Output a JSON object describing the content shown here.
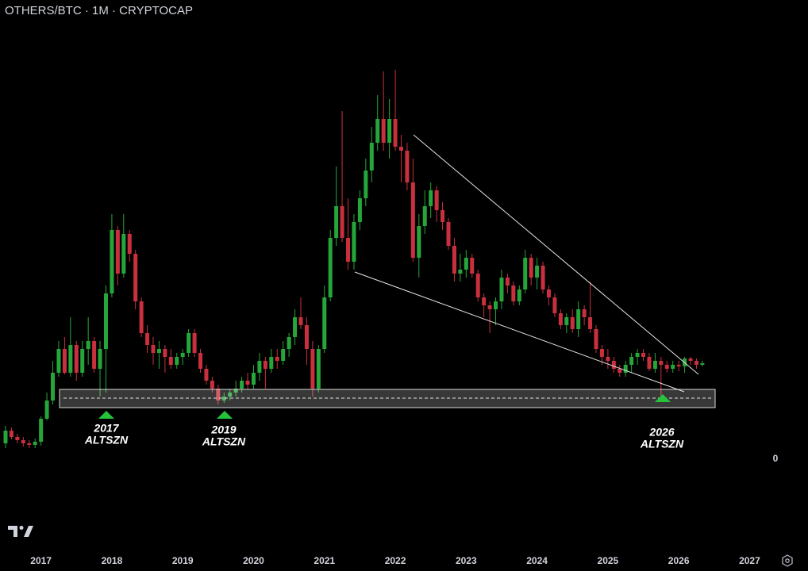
{
  "chart_data": {
    "type": "candlestick",
    "title": "OTHERS/BTC · 1M · CRYPTOCAP",
    "categories": [
      null,
      null,
      null,
      null,
      null,
      null,
      "2017",
      null,
      null,
      null,
      null,
      null,
      null,
      null,
      null,
      null,
      null,
      null,
      "2018",
      null,
      null,
      null,
      null,
      null,
      null,
      null,
      null,
      null,
      null,
      null,
      "2019",
      null,
      null,
      null,
      null,
      null,
      null,
      null,
      null,
      null,
      null,
      null,
      "2020",
      null,
      null,
      null,
      null,
      null,
      null,
      null,
      null,
      null,
      null,
      null,
      "2021",
      null,
      null,
      null,
      null,
      null,
      null,
      null,
      null,
      null,
      null,
      null,
      "2022",
      null,
      null,
      null,
      null,
      null,
      null,
      null,
      null,
      null,
      null,
      null,
      "2023",
      null,
      null,
      null,
      null,
      null,
      null,
      null,
      null,
      null,
      null,
      null,
      "2024",
      null,
      null,
      null,
      null,
      null,
      null,
      null,
      null,
      null,
      null,
      null,
      "2025",
      null,
      null,
      null,
      null,
      null,
      null,
      null,
      null,
      null,
      null,
      null,
      "2026",
      null,
      null,
      null,
      null,
      null,
      null,
      null,
      null,
      null,
      null,
      null,
      "2027"
    ],
    "open": [
      20,
      36,
      28,
      24,
      20,
      18,
      22,
      51,
      74,
      109,
      139,
      109,
      144,
      109,
      139,
      149,
      114,
      139,
      209,
      289,
      234,
      284,
      259,
      199,
      159,
      144,
      134,
      139,
      129,
      119,
      129,
      134,
      159,
      134,
      114,
      99,
      89,
      74,
      79,
      84,
      89,
      99,
      94,
      109,
      124,
      114,
      129,
      124,
      139,
      154,
      179,
      169,
      139,
      89,
      139,
      204,
      279,
      319,
      279,
      249,
      299,
      329,
      364,
      399,
      429,
      399,
      429,
      394,
      389,
      349,
      254,
      294,
      319,
      339,
      314,
      299,
      269,
      234,
      239,
      254,
      234,
      204,
      194,
      189,
      199,
      229,
      219,
      199,
      214,
      254,
      229,
      244,
      214,
      204,
      184,
      169,
      179,
      164,
      189,
      179,
      164,
      139,
      129,
      124,
      114,
      109,
      119,
      129,
      134,
      129,
      114,
      124,
      119,
      114,
      119,
      117,
      127,
      124,
      119,
      null,
      null,
      null,
      null,
      null,
      null,
      null,
      null
    ],
    "high": [
      42,
      40,
      32,
      28,
      24,
      26,
      54,
      84,
      124,
      149,
      154,
      179,
      149,
      149,
      179,
      154,
      149,
      219,
      309,
      294,
      309,
      289,
      264,
      204,
      169,
      154,
      149,
      144,
      139,
      134,
      139,
      164,
      164,
      139,
      119,
      104,
      94,
      84,
      89,
      99,
      104,
      109,
      119,
      134,
      129,
      139,
      139,
      149,
      159,
      189,
      204,
      179,
      149,
      144,
      219,
      289,
      369,
      439,
      329,
      309,
      339,
      379,
      419,
      459,
      489,
      454,
      491,
      409,
      399,
      379,
      309,
      339,
      349,
      344,
      324,
      304,
      279,
      259,
      264,
      259,
      239,
      209,
      199,
      204,
      239,
      234,
      224,
      219,
      264,
      259,
      254,
      249,
      219,
      209,
      189,
      184,
      189,
      199,
      194,
      224,
      169,
      144,
      139,
      129,
      119,
      124,
      134,
      139,
      139,
      134,
      134,
      129,
      124,
      124,
      124,
      129,
      129,
      127,
      124,
      null,
      null,
      null,
      null,
      null,
      null,
      null,
      null
    ],
    "low": [
      14,
      25,
      20,
      16,
      14,
      14,
      17,
      49,
      69,
      104,
      107,
      104,
      99,
      104,
      119,
      109,
      79,
      84,
      204,
      219,
      229,
      249,
      189,
      154,
      134,
      119,
      114,
      109,
      114,
      114,
      119,
      129,
      129,
      109,
      94,
      84,
      69,
      71,
      74,
      79,
      84,
      89,
      89,
      99,
      89,
      109,
      114,
      119,
      129,
      144,
      164,
      119,
      79,
      84,
      134,
      199,
      269,
      274,
      239,
      239,
      289,
      319,
      349,
      389,
      389,
      379,
      389,
      349,
      339,
      249,
      229,
      284,
      304,
      299,
      289,
      264,
      224,
      224,
      229,
      229,
      199,
      179,
      159,
      169,
      189,
      209,
      194,
      194,
      209,
      219,
      214,
      209,
      194,
      179,
      164,
      159,
      159,
      154,
      169,
      159,
      134,
      119,
      114,
      109,
      104,
      104,
      109,
      119,
      124,
      111,
      109,
      79,
      109,
      109,
      111,
      109,
      119,
      114,
      117,
      null,
      null,
      null,
      null,
      null,
      null,
      null,
      null
    ],
    "close": [
      36,
      28,
      24,
      20,
      18,
      22,
      51,
      74,
      109,
      139,
      109,
      144,
      109,
      139,
      149,
      114,
      139,
      209,
      289,
      234,
      284,
      259,
      199,
      159,
      144,
      134,
      139,
      129,
      119,
      129,
      134,
      159,
      134,
      114,
      99,
      89,
      74,
      79,
      84,
      89,
      99,
      94,
      109,
      124,
      114,
      129,
      124,
      139,
      154,
      179,
      169,
      139,
      89,
      139,
      204,
      279,
      319,
      279,
      249,
      299,
      329,
      364,
      399,
      429,
      399,
      429,
      394,
      389,
      349,
      254,
      294,
      319,
      339,
      314,
      299,
      269,
      234,
      239,
      254,
      234,
      204,
      194,
      189,
      199,
      229,
      219,
      199,
      214,
      254,
      229,
      244,
      214,
      204,
      184,
      169,
      179,
      164,
      189,
      179,
      164,
      139,
      129,
      124,
      114,
      109,
      119,
      129,
      134,
      129,
      114,
      124,
      119,
      114,
      119,
      117,
      127,
      124,
      119,
      121,
      null,
      null,
      null,
      null,
      null,
      null,
      null,
      null
    ],
    "up_color": "#26a63a",
    "down_color": "#c9303e",
    "ylim": [
      -111,
      549
    ],
    "yticks": [
      0
    ],
    "annotations": [
      {
        "lines": [
          "2017",
          "ALTSZN"
        ]
      },
      {
        "lines": [
          "2019",
          "ALTSZN"
        ]
      },
      {
        "lines": [
          "2026",
          "ALTSZN"
        ]
      }
    ]
  }
}
